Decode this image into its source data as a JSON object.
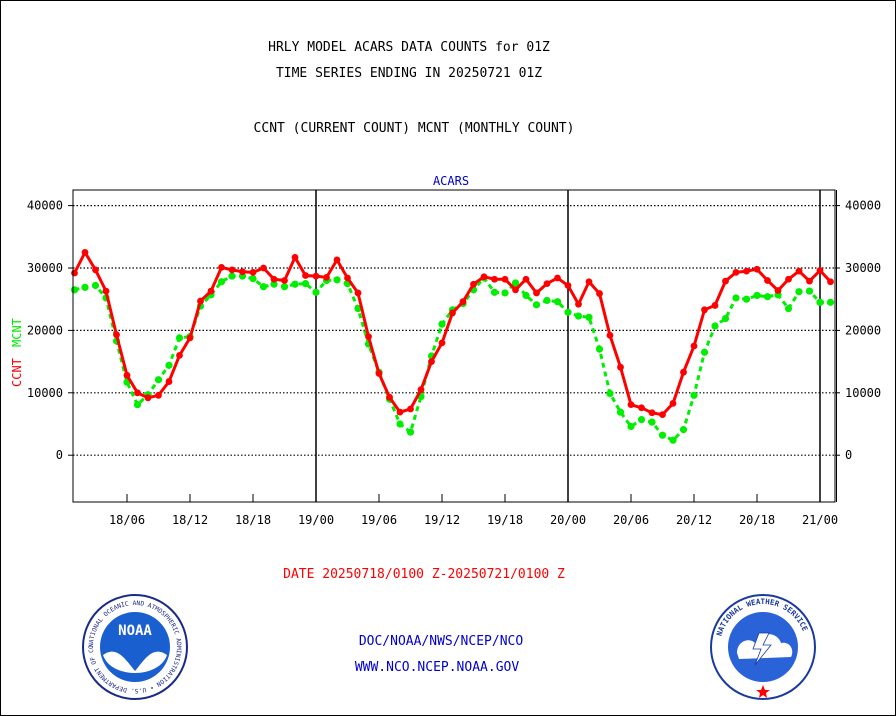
{
  "header": {
    "title_line1": "HRLY MODEL ACARS DATA COUNTS for 01Z",
    "title_line2": "TIME SERIES ENDING IN 20250721 01Z",
    "legend_line": "CCNT (CURRENT COUNT) MCNT (MONTHLY COUNT)"
  },
  "footer": {
    "date_range": "DATE 20250718/0100 Z-20250721/0100 Z",
    "org_path": "DOC/NOAA/NWS/NCEP/NCO",
    "website": "WWW.NCO.NCEP.NOAA.GOV",
    "noaa_logo_text": "NOAA",
    "noaa_ring_text": "NATIONAL OCEANIC AND ATMOSPHERIC ADMINISTRATION • U.S. DEPARTMENT OF COMMERCE",
    "nws_ring_text": "NATIONAL WEATHER SERVICE"
  },
  "colors": {
    "ccnt": "#ff0000",
    "mcnt": "#00ee00",
    "text_blue": "#0000cc"
  },
  "chart_data": {
    "type": "line",
    "title": "ACARS",
    "ylabel_ccnt": "CCNT",
    "ylabel_mcnt": "MCNT",
    "ylim": [
      -7500,
      42500
    ],
    "yticks": [
      40000,
      30000,
      20000,
      10000,
      0
    ],
    "xlim": [
      0,
      73
    ],
    "x_tick_hours": [
      5,
      11,
      17,
      23,
      29,
      35,
      41,
      47,
      53,
      59,
      65,
      71
    ],
    "x_tick_labels": [
      "18/06",
      "18/12",
      "18/18",
      "19/00",
      "19/06",
      "19/12",
      "19/18",
      "20/00",
      "20/06",
      "20/12",
      "20/18",
      "21/00"
    ],
    "day_boundary_hours": [
      23,
      47,
      71
    ],
    "series": [
      {
        "name": "CCNT",
        "values": [
          29200,
          32500,
          29700,
          26300,
          19300,
          12800,
          10000,
          9200,
          9600,
          11800,
          16000,
          18800,
          24700,
          26300,
          30100,
          29700,
          29400,
          29300,
          30000,
          28200,
          28000,
          31700,
          28800,
          28700,
          28500,
          31300,
          28400,
          26000,
          19000,
          13100,
          9300,
          6900,
          7400,
          10500,
          15000,
          18000,
          22800,
          24600,
          27400,
          28600,
          28200,
          28200,
          26500,
          28200,
          26000,
          27500,
          28400,
          27200,
          24200,
          27800,
          25900,
          19200,
          14100,
          8100,
          7600,
          6800,
          6500,
          8300,
          13300,
          17500,
          23300,
          24000,
          27900,
          29300,
          29500,
          29800,
          28000,
          26400,
          28200,
          29500,
          27900,
          29600,
          27800
        ]
      },
      {
        "name": "MCNT",
        "values": [
          26500,
          26900,
          27200,
          25200,
          18300,
          11700,
          8100,
          9700,
          12100,
          14400,
          18800,
          19000,
          23900,
          25700,
          27800,
          28700,
          28700,
          28300,
          27000,
          27400,
          27000,
          27400,
          27500,
          26100,
          28000,
          28100,
          27500,
          23500,
          17800,
          13300,
          9000,
          5000,
          3700,
          9400,
          15900,
          21000,
          23300,
          24300,
          26500,
          28400,
          26100,
          26000,
          27600,
          25600,
          24100,
          24800,
          24600,
          22900,
          22300,
          22100,
          17000,
          9900,
          6900,
          4600,
          5700,
          5300,
          3200,
          2400,
          4100,
          9600,
          16500,
          20700,
          21900,
          25200,
          25000,
          25600,
          25400,
          25700,
          23500,
          26200,
          26300,
          24500,
          24500
        ]
      }
    ]
  }
}
